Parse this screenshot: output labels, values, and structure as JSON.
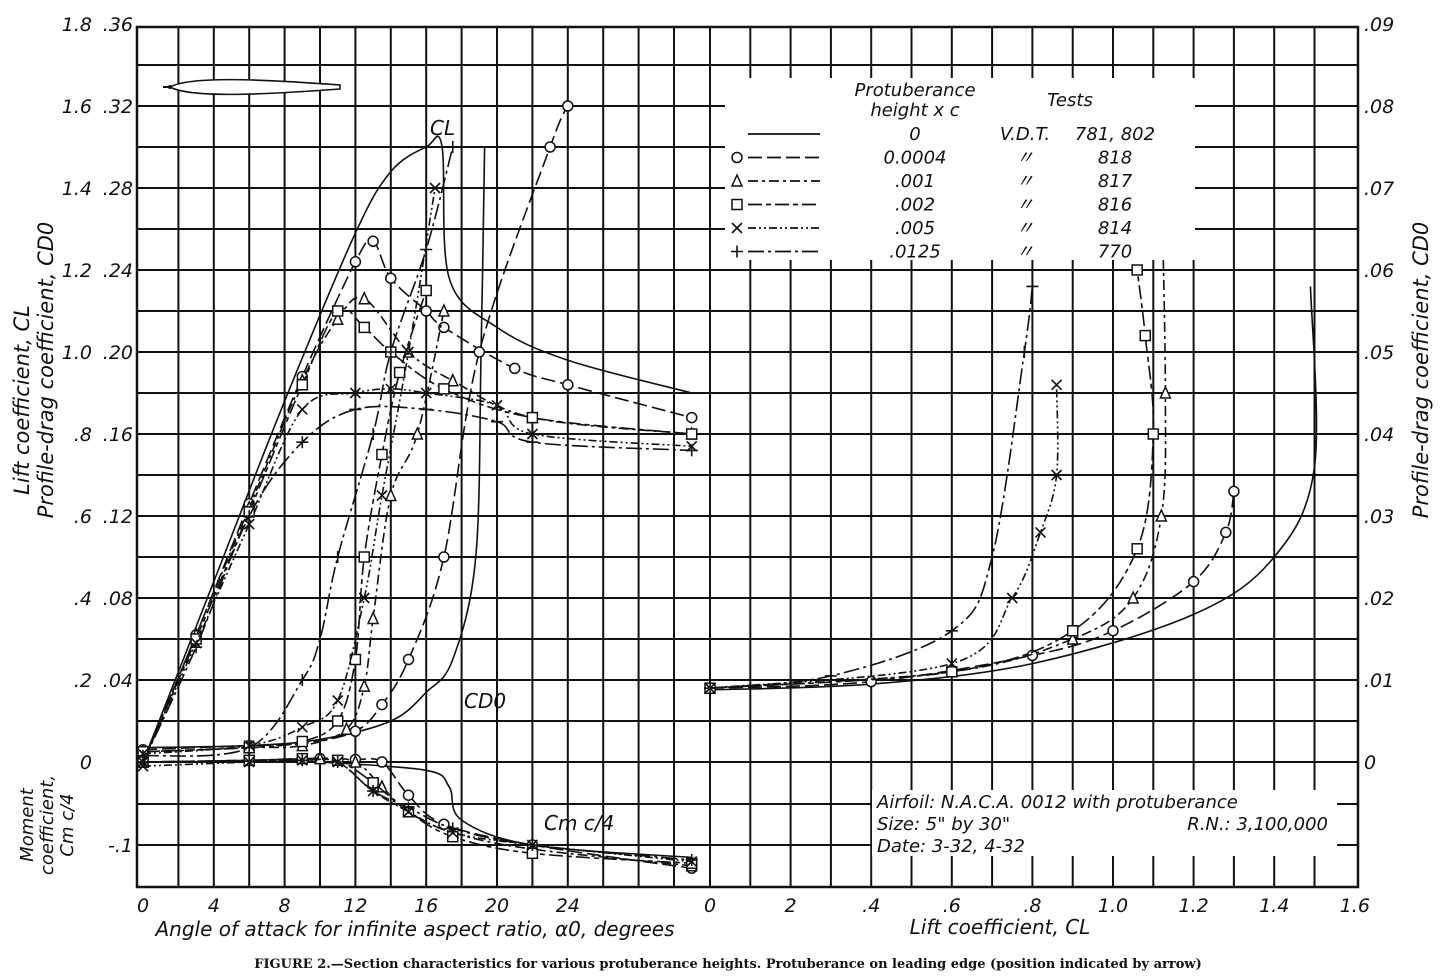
{
  "chart_data": [
    {
      "type": "line",
      "panel": "left",
      "xlabel": "Angle of attack for infinite aspect ratio, α0, degrees",
      "x_ticks": [
        "0",
        "4",
        "8",
        "12",
        "16",
        "20",
        "24",
        "0"
      ],
      "xlim": [
        0,
        32
      ],
      "axes": {
        "lift": {
          "label": "Lift coefficient, CL",
          "ticks": [
            "1.8",
            "1.6",
            "1.4",
            "1.2",
            "1.0",
            ".8",
            ".6",
            ".4",
            ".2",
            "0"
          ],
          "ylim": [
            0,
            1.8
          ]
        },
        "drag": {
          "label": "Profile-drag coefficient, CD0",
          "ticks": [
            ".36",
            ".32",
            ".28",
            ".24",
            ".20",
            ".16",
            ".12",
            ".08",
            ".04"
          ],
          "ylim": [
            0,
            0.36
          ]
        },
        "moment": {
          "label": "Moment coefficient, Cm c/4",
          "ticks": [
            "-.1"
          ],
          "ylim": [
            -0.15,
            0
          ]
        }
      },
      "annotations": {
        "cl": "CL",
        "cd": "CD0",
        "cm": "Cm c/4"
      },
      "grid": true,
      "series": [
        {
          "name": "0",
          "marker": "none",
          "CL": [
            [
              0,
              0
            ],
            [
              4,
              0.44
            ],
            [
              8,
              0.88
            ],
            [
              12,
              1.29
            ],
            [
              14,
              1.44
            ],
            [
              16,
              1.5
            ],
            [
              16.9,
              1.5
            ],
            [
              17.3,
              1.18
            ],
            [
              20,
              1.06
            ],
            [
              24,
              0.98
            ],
            [
              31,
              0.9
            ]
          ],
          "CD0": [
            [
              0,
              0.007
            ],
            [
              6,
              0.008
            ],
            [
              10,
              0.011
            ],
            [
              14,
              0.02
            ],
            [
              16,
              0.034
            ],
            [
              17.5,
              0.05
            ],
            [
              18.8,
              0.1
            ],
            [
              19.1,
              0.2
            ],
            [
              19.3,
              0.3
            ]
          ],
          "Cm": [
            [
              10,
              0.0
            ],
            [
              16,
              -0.01
            ],
            [
              17.3,
              -0.03
            ],
            [
              18,
              -0.07
            ],
            [
              22,
              -0.1
            ],
            [
              31,
              -0.115
            ]
          ]
        },
        {
          "name": "0.0004",
          "marker": "circle",
          "CL": [
            [
              0,
              0
            ],
            [
              3,
              0.31
            ],
            [
              6,
              0.63
            ],
            [
              9,
              0.94
            ],
            [
              12,
              1.22
            ],
            [
              13,
              1.27
            ],
            [
              14,
              1.18
            ],
            [
              16,
              1.1
            ],
            [
              17,
              1.06
            ],
            [
              21,
              0.96
            ],
            [
              24,
              0.92
            ],
            [
              31,
              0.84
            ]
          ],
          "CD0": [
            [
              0,
              0.006
            ],
            [
              6,
              0.008
            ],
            [
              9,
              0.009
            ],
            [
              12,
              0.015
            ],
            [
              13.5,
              0.028
            ],
            [
              15,
              0.05
            ],
            [
              17,
              0.1
            ],
            [
              19,
              0.2
            ],
            [
              23,
              0.3
            ],
            [
              24,
              0.32
            ]
          ],
          "Cm": [
            [
              0,
              0
            ],
            [
              6,
              0.002
            ],
            [
              10,
              0.004
            ],
            [
              12,
              0.003
            ],
            [
              13.5,
              0
            ],
            [
              15,
              -0.04
            ],
            [
              17,
              -0.075
            ],
            [
              22,
              -0.1
            ],
            [
              31,
              -0.128
            ]
          ]
        },
        {
          "name": ".001",
          "marker": "triangle",
          "CL": [
            [
              0,
              0
            ],
            [
              3,
              0.31
            ],
            [
              6,
              0.62
            ],
            [
              9,
              0.93
            ],
            [
              11,
              1.08
            ],
            [
              12.5,
              1.13
            ],
            [
              15,
              1.0
            ],
            [
              17.5,
              0.93
            ],
            [
              22,
              0.84
            ],
            [
              31,
              0.8
            ]
          ],
          "CD0": [
            [
              0,
              0.005
            ],
            [
              6,
              0.007
            ],
            [
              9,
              0.008
            ],
            [
              11.5,
              0.016
            ],
            [
              12.5,
              0.037
            ],
            [
              13,
              0.07
            ],
            [
              14,
              0.13
            ],
            [
              15.5,
              0.16
            ],
            [
              17,
              0.22
            ]
          ],
          "Cm": [
            [
              0,
              0
            ],
            [
              6,
              0.002
            ],
            [
              10,
              0.004
            ],
            [
              12,
              0
            ],
            [
              13.5,
              -0.03
            ],
            [
              15,
              -0.06
            ],
            [
              17.5,
              -0.085
            ],
            [
              22,
              -0.105
            ],
            [
              31,
              -0.125
            ]
          ]
        },
        {
          "name": ".002",
          "marker": "square",
          "CL": [
            [
              0,
              0
            ],
            [
              3,
              0.3
            ],
            [
              6,
              0.61
            ],
            [
              9,
              0.92
            ],
            [
              11,
              1.1
            ],
            [
              12.5,
              1.06
            ],
            [
              14,
              1.0
            ],
            [
              17,
              0.91
            ],
            [
              22,
              0.84
            ],
            [
              31,
              0.8
            ]
          ],
          "CD0": [
            [
              0,
              0.005
            ],
            [
              6,
              0.007
            ],
            [
              9,
              0.01
            ],
            [
              11,
              0.02
            ],
            [
              12,
              0.05
            ],
            [
              12.5,
              0.1
            ],
            [
              13.5,
              0.15
            ],
            [
              14.5,
              0.19
            ],
            [
              16,
              0.23
            ]
          ],
          "Cm": [
            [
              0,
              0
            ],
            [
              6,
              0.002
            ],
            [
              9,
              0.004
            ],
            [
              11,
              0.002
            ],
            [
              13,
              -0.025
            ],
            [
              15,
              -0.06
            ],
            [
              17.5,
              -0.09
            ],
            [
              22,
              -0.11
            ],
            [
              31,
              -0.122
            ]
          ]
        },
        {
          "name": ".005",
          "marker": "x",
          "CL": [
            [
              0,
              0
            ],
            [
              3,
              0.29
            ],
            [
              6,
              0.58
            ],
            [
              9,
              0.86
            ],
            [
              12,
              0.9
            ],
            [
              14,
              0.91
            ],
            [
              16,
              0.9
            ],
            [
              20,
              0.87
            ],
            [
              22,
              0.8
            ],
            [
              31,
              0.77
            ]
          ],
          "CD0": [
            [
              0,
              0.004
            ],
            [
              6,
              0.008
            ],
            [
              9,
              0.017
            ],
            [
              11,
              0.03
            ],
            [
              12.5,
              0.08
            ],
            [
              13.5,
              0.13
            ],
            [
              15,
              0.2
            ],
            [
              16.5,
              0.28
            ]
          ],
          "Cm": [
            [
              0,
              -0.005
            ],
            [
              6,
              0
            ],
            [
              9,
              0.002
            ],
            [
              11,
              0
            ],
            [
              13,
              -0.035
            ],
            [
              15,
              -0.06
            ],
            [
              17.5,
              -0.085
            ],
            [
              22,
              -0.1
            ],
            [
              31,
              -0.12
            ]
          ]
        },
        {
          "name": ".0125",
          "marker": "plus",
          "CL": [
            [
              0,
              0
            ],
            [
              3,
              0.28
            ],
            [
              6,
              0.6
            ],
            [
              9,
              0.78
            ],
            [
              12,
              0.86
            ],
            [
              16,
              0.86
            ],
            [
              20,
              0.83
            ],
            [
              22,
              0.78
            ],
            [
              31,
              0.76
            ]
          ],
          "CD0": [
            [
              0,
              0.003
            ],
            [
              6,
              0.007
            ],
            [
              9,
              0.04
            ],
            [
              10,
              0.06
            ],
            [
              11,
              0.1
            ],
            [
              13,
              0.16
            ],
            [
              14,
              0.2
            ],
            [
              16,
              0.25
            ],
            [
              17.5,
              0.3
            ]
          ],
          "Cm": [
            [
              0,
              0
            ],
            [
              6,
              0.001
            ],
            [
              9,
              0.002
            ],
            [
              11,
              0
            ],
            [
              13,
              -0.035
            ],
            [
              15,
              -0.055
            ],
            [
              17.5,
              -0.08
            ],
            [
              22,
              -0.1
            ],
            [
              31,
              -0.118
            ]
          ]
        }
      ]
    },
    {
      "type": "line",
      "panel": "right",
      "xlabel": "Lift coefficient, CL",
      "x_ticks": [
        "2",
        ".4",
        ".6",
        ".8",
        "1.0",
        "1.2",
        "1.4",
        "1.6"
      ],
      "xlim": [
        0,
        1.6
      ],
      "ylabel": "Profile-drag coefficient, CD0",
      "y_ticks": [
        ".09",
        ".08",
        ".07",
        ".06",
        ".05",
        ".04",
        ".03",
        ".02",
        ".01",
        "0"
      ],
      "ylim": [
        0,
        0.09
      ],
      "grid": true,
      "series": [
        {
          "name": "0",
          "marker": "none",
          "points": [
            [
              0,
              0.0088
            ],
            [
              0.4,
              0.0095
            ],
            [
              0.8,
              0.012
            ],
            [
              1.2,
              0.018
            ],
            [
              1.4,
              0.025
            ],
            [
              1.5,
              0.036
            ],
            [
              1.49,
              0.058
            ]
          ]
        },
        {
          "name": "0.0004",
          "marker": "circle",
          "points": [
            [
              0,
              0.009
            ],
            [
              0.4,
              0.0098
            ],
            [
              0.8,
              0.013
            ],
            [
              1.0,
              0.016
            ],
            [
              1.2,
              0.022
            ],
            [
              1.28,
              0.028
            ],
            [
              1.3,
              0.033
            ]
          ]
        },
        {
          "name": ".001",
          "marker": "triangle",
          "points": [
            [
              0,
              0.009
            ],
            [
              0.6,
              0.011
            ],
            [
              0.9,
              0.015
            ],
            [
              1.05,
              0.02
            ],
            [
              1.12,
              0.03
            ],
            [
              1.13,
              0.045
            ],
            [
              1.12,
              0.072
            ]
          ]
        },
        {
          "name": ".002",
          "marker": "square",
          "points": [
            [
              0,
              0.009
            ],
            [
              0.6,
              0.011
            ],
            [
              0.9,
              0.016
            ],
            [
              1.06,
              0.026
            ],
            [
              1.1,
              0.04
            ],
            [
              1.08,
              0.052
            ],
            [
              1.06,
              0.06
            ]
          ]
        },
        {
          "name": ".005",
          "marker": "x",
          "points": [
            [
              0,
              0.009
            ],
            [
              0.6,
              0.012
            ],
            [
              0.75,
              0.02
            ],
            [
              0.82,
              0.028
            ],
            [
              0.86,
              0.035
            ],
            [
              0.86,
              0.046
            ]
          ]
        },
        {
          "name": ".0125",
          "marker": "plus",
          "points": [
            [
              0,
              0.009
            ],
            [
              0.3,
              0.0105
            ],
            [
              0.6,
              0.016
            ],
            [
              0.7,
              0.025
            ],
            [
              0.78,
              0.05
            ],
            [
              0.8,
              0.058
            ]
          ]
        }
      ]
    }
  ],
  "legend": {
    "header_height": "Protuberance",
    "header_height2": "height x c",
    "header_tests": "Tests",
    "rows": [
      {
        "marker": "none",
        "height": "0",
        "ditto": "V.D.T.",
        "test": "781, 802"
      },
      {
        "marker": "circle",
        "height": "0.0004",
        "ditto": "〃",
        "test": "818"
      },
      {
        "marker": "triangle",
        "height": ".001",
        "ditto": "〃",
        "test": "817"
      },
      {
        "marker": "square",
        "height": ".002",
        "ditto": "〃",
        "test": "816"
      },
      {
        "marker": "x",
        "height": ".005",
        "ditto": "〃",
        "test": "814"
      },
      {
        "marker": "plus",
        "height": ".0125",
        "ditto": "〃",
        "test": "770"
      }
    ]
  },
  "notes": {
    "airfoil": "Airfoil: N.A.C.A. 0012 with protuberance",
    "size": "Size: 5\" by 30\"",
    "rn": "R.N.: 3,100,000",
    "date": "Date: 3-32, 4-32"
  },
  "caption": "FIGURE 2.—Section characteristics for various protuberance heights.   Protuberance on leading edge (position indicated by arrow)"
}
